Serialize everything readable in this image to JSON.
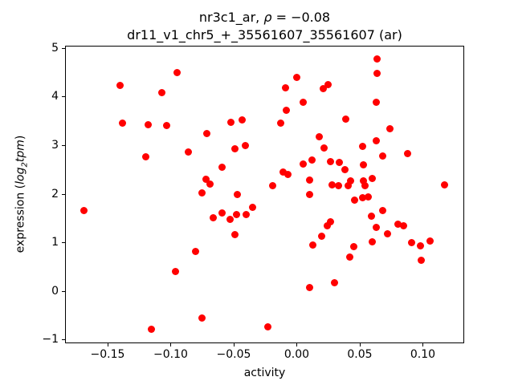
{
  "title": {
    "prefix": "nr3c1_ar, ",
    "rho": "ρ",
    "value": " = −0.08",
    "line2": "dr11_v1_chr5_+_35561607_35561607 (ar)"
  },
  "xlabel": "activity",
  "ylabel": {
    "pre": "expression (",
    "log": "log",
    "sub": "2",
    "tpm": "tpm",
    "post": ")"
  },
  "chart_data": {
    "type": "scatter",
    "title": "nr3c1_ar, ρ = −0.08",
    "subtitle": "dr11_v1_chr5_+_35561607_35561607 (ar)",
    "xlabel": "activity",
    "ylabel": "expression (log2 tpm)",
    "marker_color": "#ff0000",
    "marker_diameter_px": 9,
    "grid": false,
    "legend": null,
    "xlim": [
      -0.1831,
      0.1322
    ],
    "ylim": [
      -1.066,
      5.033
    ],
    "xticks": [
      -0.15,
      -0.1,
      -0.05,
      0.0,
      0.05,
      0.1
    ],
    "xtick_labels": [
      "−0.15",
      "−0.10",
      "−0.05",
      "0.00",
      "0.05",
      "0.10"
    ],
    "yticks": [
      -1,
      0,
      1,
      2,
      3,
      4,
      5
    ],
    "ytick_labels": [
      "−1",
      "0",
      "1",
      "2",
      "3",
      "4",
      "5"
    ],
    "points": [
      [
        -0.095,
        4.5
      ],
      [
        -0.14,
        4.23
      ],
      [
        -0.107,
        4.08
      ],
      [
        -0.138,
        3.45
      ],
      [
        -0.118,
        3.42
      ],
      [
        -0.103,
        3.4
      ],
      [
        -0.086,
        2.86
      ],
      [
        -0.12,
        2.76
      ],
      [
        -0.052,
        3.47
      ],
      [
        -0.043,
        3.52
      ],
      [
        -0.071,
        3.24
      ],
      [
        -0.041,
        3.0
      ],
      [
        -0.049,
        2.92
      ],
      [
        -0.059,
        2.55
      ],
      [
        -0.072,
        2.3
      ],
      [
        -0.069,
        2.2
      ],
      [
        -0.075,
        2.01
      ],
      [
        -0.047,
        1.98
      ],
      [
        -0.169,
        1.65
      ],
      [
        -0.066,
        1.5
      ],
      [
        -0.059,
        1.6
      ],
      [
        -0.053,
        1.47
      ],
      [
        -0.048,
        1.57
      ],
      [
        -0.04,
        1.57
      ],
      [
        -0.035,
        1.72
      ],
      [
        -0.049,
        1.15
      ],
      [
        -0.08,
        0.81
      ],
      [
        -0.096,
        0.4
      ],
      [
        -0.115,
        -0.8
      ],
      [
        -0.075,
        -0.56
      ],
      [
        -0.009,
        4.18
      ],
      [
        0.0,
        4.4
      ],
      [
        0.005,
        3.88
      ],
      [
        -0.008,
        3.72
      ],
      [
        -0.013,
        3.45
      ],
      [
        0.005,
        2.61
      ],
      [
        0.012,
        2.7
      ],
      [
        -0.011,
        2.45
      ],
      [
        -0.007,
        2.4
      ],
      [
        -0.019,
        2.16
      ],
      [
        0.01,
        2.28
      ],
      [
        0.01,
        1.99
      ],
      [
        -0.023,
        -0.74
      ],
      [
        0.01,
        0.07
      ],
      [
        0.021,
        4.17
      ],
      [
        0.025,
        4.24
      ],
      [
        0.064,
        4.77
      ],
      [
        0.064,
        4.48
      ],
      [
        0.063,
        3.88
      ],
      [
        0.039,
        3.54
      ],
      [
        0.074,
        3.34
      ],
      [
        0.063,
        3.09
      ],
      [
        0.052,
        2.98
      ],
      [
        0.068,
        2.78
      ],
      [
        0.088,
        2.82
      ],
      [
        0.018,
        3.18
      ],
      [
        0.022,
        2.94
      ],
      [
        0.027,
        2.66
      ],
      [
        0.034,
        2.64
      ],
      [
        0.038,
        2.5
      ],
      [
        0.053,
        2.6
      ],
      [
        0.06,
        2.31
      ],
      [
        0.028,
        2.19
      ],
      [
        0.033,
        2.17
      ],
      [
        0.043,
        2.26
      ],
      [
        0.041,
        2.16
      ],
      [
        0.053,
        2.26
      ],
      [
        0.054,
        2.16
      ],
      [
        0.117,
        2.19
      ],
      [
        0.046,
        1.86
      ],
      [
        0.052,
        1.91
      ],
      [
        0.057,
        1.93
      ],
      [
        0.068,
        1.65
      ],
      [
        0.059,
        1.53
      ],
      [
        0.027,
        1.42
      ],
      [
        0.024,
        1.34
      ],
      [
        0.063,
        1.31
      ],
      [
        0.072,
        1.18
      ],
      [
        0.08,
        1.38
      ],
      [
        0.085,
        1.34
      ],
      [
        0.06,
        1.01
      ],
      [
        0.045,
        0.91
      ],
      [
        0.042,
        0.7
      ],
      [
        0.091,
        1.0
      ],
      [
        0.098,
        0.92
      ],
      [
        0.106,
        1.02
      ],
      [
        0.099,
        0.62
      ],
      [
        0.03,
        0.17
      ],
      [
        0.02,
        1.12
      ],
      [
        0.013,
        0.95
      ]
    ]
  }
}
